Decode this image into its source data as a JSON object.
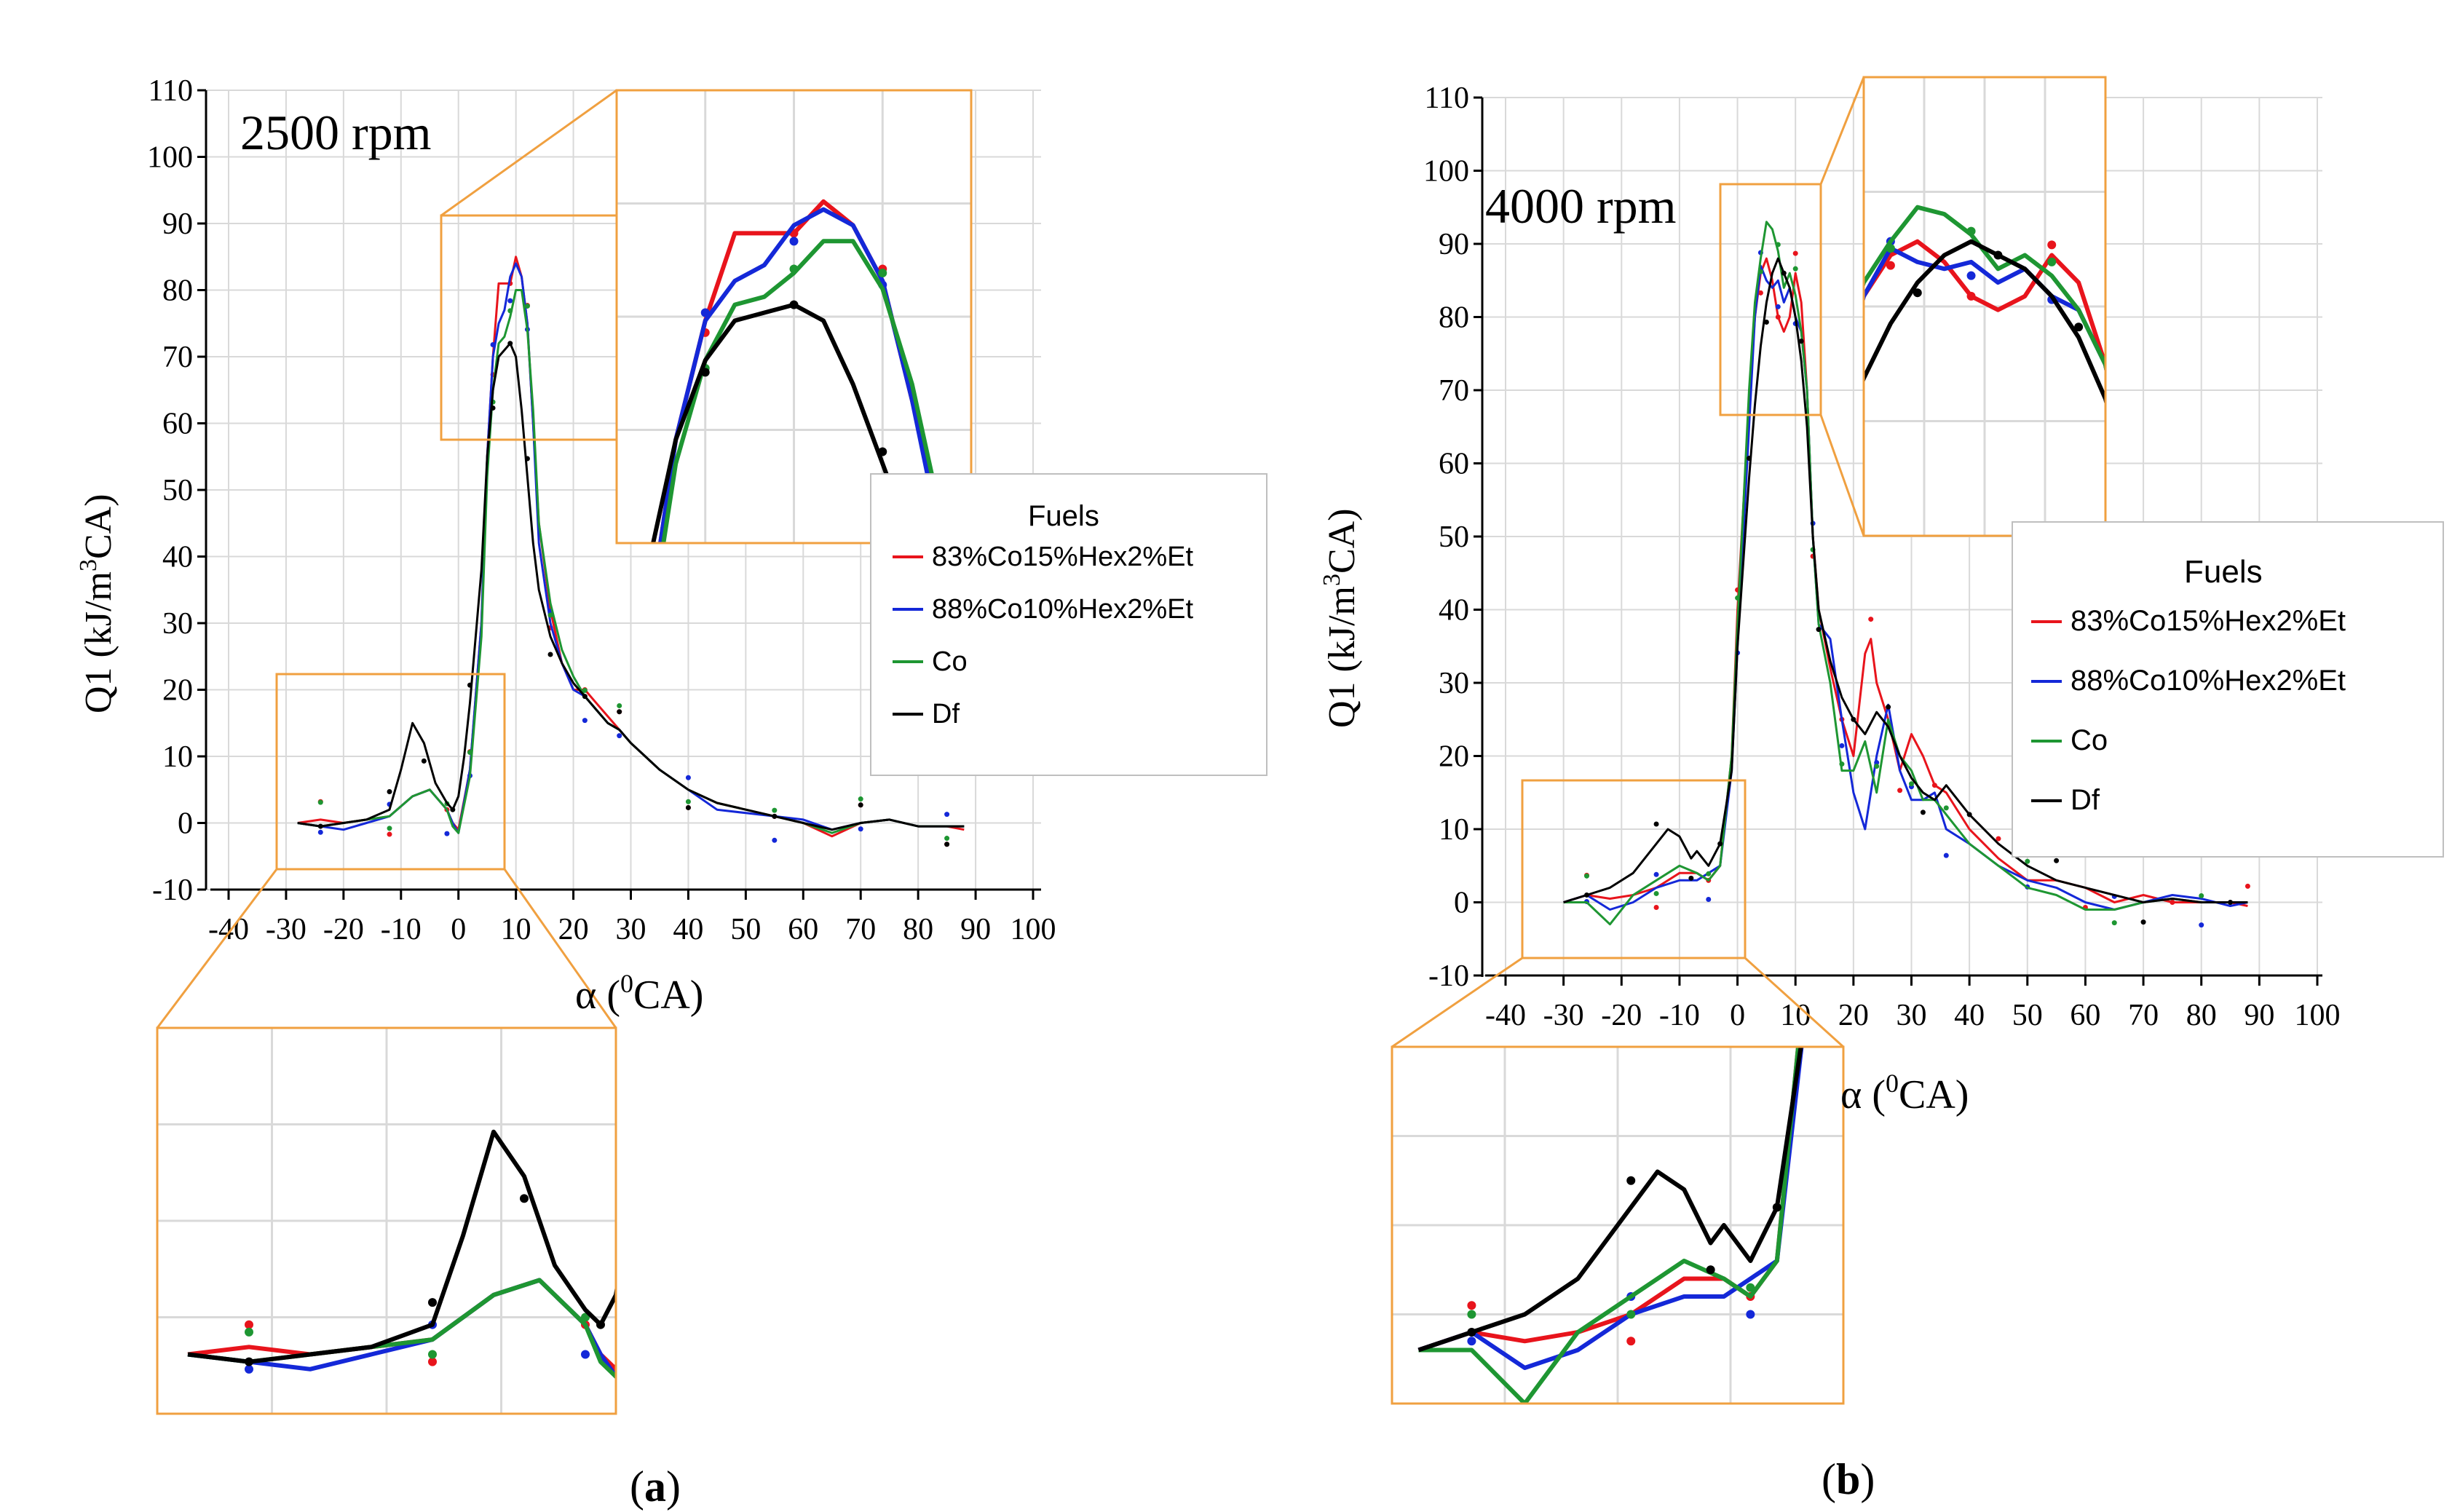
{
  "charts": {
    "a": {
      "panel_label": "a",
      "rpm_text": "2500 rpm",
      "xlabel_prefix": "α (",
      "xlabel_sup": "0",
      "xlabel_suffix": "CA)",
      "ylabel_prefix": "Q1 (kJ/m",
      "ylabel_sup": "3",
      "ylabel_suffix": "CA)",
      "legend_title": "Fuels"
    },
    "b": {
      "panel_label": "b",
      "rpm_text": "4000 rpm",
      "xlabel_prefix": "α (",
      "xlabel_sup": "0",
      "xlabel_suffix": "CA)",
      "ylabel_prefix": "Q1 (kJ/m",
      "ylabel_sup": "3",
      "ylabel_suffix": "CA)",
      "legend_title": "Fuels"
    }
  },
  "zoom_color": "#f0a040",
  "grid_color": "#d9d9d9",
  "chart_data": [
    {
      "type": "line",
      "title": "2500 rpm",
      "xlabel": "α (0CA)",
      "ylabel": "Q1 (kJ/m3CA)",
      "xlim": [
        -40,
        100
      ],
      "ylim": [
        -10,
        110
      ],
      "xticks": [
        -40,
        -30,
        -20,
        -10,
        0,
        10,
        20,
        30,
        40,
        50,
        60,
        70,
        80,
        90,
        100
      ],
      "yticks": [
        -10,
        0,
        10,
        20,
        30,
        40,
        50,
        60,
        70,
        80,
        90,
        100,
        110
      ],
      "grid": true,
      "legend_title": "Fuels",
      "legend_position": "right",
      "series": [
        {
          "name": "83%Co15%Hex2%Et",
          "color": "#e8141c",
          "x": [
            -28,
            -24,
            -20,
            -16,
            -12,
            -8,
            -5,
            -2,
            -1,
            0,
            2,
            4,
            5,
            6,
            7,
            8,
            9,
            10,
            11,
            12,
            13,
            14,
            16,
            18,
            20,
            22,
            24,
            26,
            28,
            30,
            35,
            40,
            45,
            50,
            55,
            60,
            65,
            70,
            75,
            80,
            85,
            88
          ],
          "y": [
            0,
            0.5,
            0,
            0.5,
            1,
            4,
            5,
            2,
            0,
            -1,
            8,
            30,
            55,
            70,
            81,
            81,
            81,
            85,
            82,
            75,
            60,
            45,
            32,
            24,
            20,
            20,
            18,
            16,
            14,
            12,
            8,
            5,
            3,
            2,
            1,
            0,
            -2,
            0,
            0.5,
            -0.5,
            -0.5,
            -1
          ]
        },
        {
          "name": "88%Co10%Hex2%Et",
          "color": "#1428d8",
          "x": [
            -28,
            -24,
            -20,
            -16,
            -12,
            -8,
            -5,
            -2,
            -1,
            0,
            2,
            4,
            5,
            6,
            7,
            8,
            9,
            10,
            11,
            12,
            13,
            14,
            16,
            18,
            20,
            22,
            24,
            26,
            28,
            30,
            35,
            40,
            45,
            50,
            55,
            60,
            65,
            70,
            75,
            80,
            85,
            88
          ],
          "y": [
            0,
            -0.5,
            -1,
            0,
            1,
            4,
            5,
            2,
            0,
            -1.5,
            8,
            30,
            55,
            70,
            75,
            77,
            82,
            84,
            82,
            75,
            60,
            42,
            30,
            24,
            20,
            19,
            17,
            15,
            14,
            12,
            8,
            5,
            2,
            1.5,
            1,
            0.5,
            -1,
            0,
            0.5,
            -0.5,
            -0.5,
            -0.5
          ]
        },
        {
          "name": "Co",
          "color": "#1e9632",
          "x": [
            -28,
            -24,
            -20,
            -16,
            -12,
            -8,
            -5,
            -2,
            -1,
            0,
            2,
            4,
            5,
            6,
            7,
            8,
            9,
            10,
            11,
            12,
            13,
            14,
            16,
            18,
            20,
            22,
            24,
            26,
            28,
            30,
            35,
            40,
            45,
            50,
            55,
            60,
            65,
            70,
            75,
            80,
            85,
            88
          ],
          "y": [
            0,
            -0.5,
            0,
            0.5,
            1,
            4,
            5,
            2,
            -0.5,
            -1.5,
            7,
            28,
            52,
            65,
            72,
            73,
            76,
            80,
            80,
            74,
            62,
            45,
            33,
            26,
            22,
            19,
            17,
            15,
            14,
            12,
            8,
            5,
            3,
            2,
            1,
            0,
            -1.5,
            0,
            0.5,
            -0.5,
            -0.5,
            -0.5
          ]
        },
        {
          "name": "Df",
          "color": "#000000",
          "x": [
            -28,
            -24,
            -20,
            -16,
            -12,
            -10,
            -8,
            -6,
            -4,
            -2,
            -1,
            0,
            1,
            2,
            4,
            5,
            6,
            7,
            8,
            9,
            10,
            11,
            12,
            13,
            14,
            16,
            18,
            20,
            22,
            24,
            26,
            28,
            30,
            35,
            40,
            45,
            50,
            55,
            60,
            65,
            70,
            75,
            80,
            85,
            88
          ],
          "y": [
            0,
            -0.5,
            0,
            0.5,
            2,
            8,
            15,
            12,
            6,
            3,
            2,
            4,
            10,
            18,
            38,
            55,
            65,
            70,
            71,
            72,
            70,
            62,
            52,
            42,
            35,
            28,
            24,
            21,
            19,
            17,
            15,
            14,
            12,
            8,
            5,
            3,
            2,
            1,
            0,
            -1,
            0,
            0.5,
            -0.5,
            -0.5,
            -0.5
          ]
        }
      ]
    },
    {
      "type": "line",
      "title": "4000 rpm",
      "xlabel": "α (0CA)",
      "ylabel": "Q1 (kJ/m3CA)",
      "xlim": [
        -40,
        100
      ],
      "ylim": [
        -10,
        110
      ],
      "xticks": [
        -40,
        -30,
        -20,
        -10,
        0,
        10,
        20,
        30,
        40,
        50,
        60,
        70,
        80,
        90,
        100
      ],
      "yticks": [
        -10,
        0,
        10,
        20,
        30,
        40,
        50,
        60,
        70,
        80,
        90,
        100,
        110
      ],
      "grid": true,
      "legend_title": "Fuels",
      "legend_position": "right",
      "series": [
        {
          "name": "83%Co15%Hex2%Et",
          "color": "#e8141c",
          "x": [
            -30,
            -26,
            -22,
            -18,
            -14,
            -10,
            -7,
            -5,
            -3,
            -1,
            0,
            2,
            3,
            4,
            5,
            6,
            7,
            8,
            9,
            10,
            11,
            12,
            13,
            14,
            16,
            18,
            20,
            22,
            23,
            24,
            26,
            28,
            30,
            32,
            34,
            36,
            40,
            45,
            50,
            55,
            60,
            65,
            70,
            75,
            80,
            85,
            88
          ],
          "y": [
            0,
            1,
            0.5,
            1,
            2,
            4,
            4,
            3,
            5,
            20,
            40,
            68,
            80,
            86,
            88,
            85,
            80,
            78,
            80,
            86,
            82,
            70,
            50,
            40,
            32,
            25,
            20,
            34,
            36,
            30,
            25,
            18,
            23,
            20,
            16,
            15,
            10,
            6,
            3,
            3,
            2,
            0,
            1,
            0,
            0,
            0,
            -0.5
          ]
        },
        {
          "name": "88%Co10%Hex2%Et",
          "color": "#1428d8",
          "x": [
            -30,
            -26,
            -22,
            -18,
            -14,
            -10,
            -7,
            -5,
            -3,
            -1,
            0,
            2,
            3,
            4,
            5,
            6,
            7,
            8,
            9,
            10,
            11,
            12,
            13,
            14,
            16,
            18,
            20,
            22,
            24,
            26,
            28,
            30,
            32,
            34,
            36,
            40,
            45,
            50,
            55,
            60,
            65,
            70,
            75,
            80,
            85,
            88
          ],
          "y": [
            0,
            1,
            -1,
            0,
            2,
            3,
            3,
            4,
            5,
            18,
            35,
            65,
            80,
            87,
            85,
            84,
            85,
            82,
            84,
            80,
            78,
            70,
            50,
            38,
            36,
            25,
            15,
            10,
            20,
            27,
            18,
            14,
            14,
            15,
            10,
            8,
            5,
            3,
            2,
            0,
            -1,
            0,
            1,
            0.5,
            -0.5,
            0
          ]
        },
        {
          "name": "Co",
          "color": "#1e9632",
          "x": [
            -30,
            -26,
            -22,
            -18,
            -14,
            -10,
            -7,
            -5,
            -3,
            -1,
            0,
            2,
            3,
            4,
            5,
            6,
            7,
            8,
            9,
            10,
            11,
            12,
            13,
            14,
            16,
            18,
            20,
            22,
            24,
            26,
            28,
            30,
            32,
            34,
            36,
            40,
            45,
            50,
            55,
            60,
            65,
            70,
            75,
            80,
            85,
            88
          ],
          "y": [
            0,
            0,
            -3,
            1,
            3,
            5,
            4,
            3,
            5,
            20,
            38,
            70,
            82,
            88,
            93,
            92,
            89,
            84,
            86,
            83,
            78,
            70,
            50,
            38,
            30,
            18,
            18,
            22,
            15,
            25,
            20,
            18,
            14,
            14,
            12,
            8,
            5,
            2,
            1,
            -1,
            -1,
            0,
            0.5,
            0,
            0,
            0
          ]
        },
        {
          "name": "Df",
          "color": "#000000",
          "x": [
            -30,
            -26,
            -22,
            -18,
            -14,
            -12,
            -10,
            -8,
            -7,
            -5,
            -3,
            -1,
            0,
            2,
            3,
            4,
            5,
            6,
            7,
            8,
            9,
            10,
            11,
            12,
            13,
            14,
            16,
            18,
            20,
            22,
            24,
            26,
            28,
            30,
            32,
            34,
            36,
            40,
            45,
            50,
            55,
            60,
            65,
            70,
            75,
            80,
            85,
            88
          ],
          "y": [
            0,
            1,
            2,
            4,
            8,
            10,
            9,
            6,
            7,
            5,
            8,
            18,
            35,
            58,
            68,
            76,
            82,
            86,
            88,
            86,
            84,
            80,
            74,
            65,
            50,
            40,
            33,
            28,
            25,
            23,
            26,
            24,
            20,
            17,
            15,
            14,
            16,
            12,
            8,
            5,
            3,
            2,
            1,
            0,
            0.5,
            0,
            0,
            0
          ]
        }
      ]
    }
  ]
}
